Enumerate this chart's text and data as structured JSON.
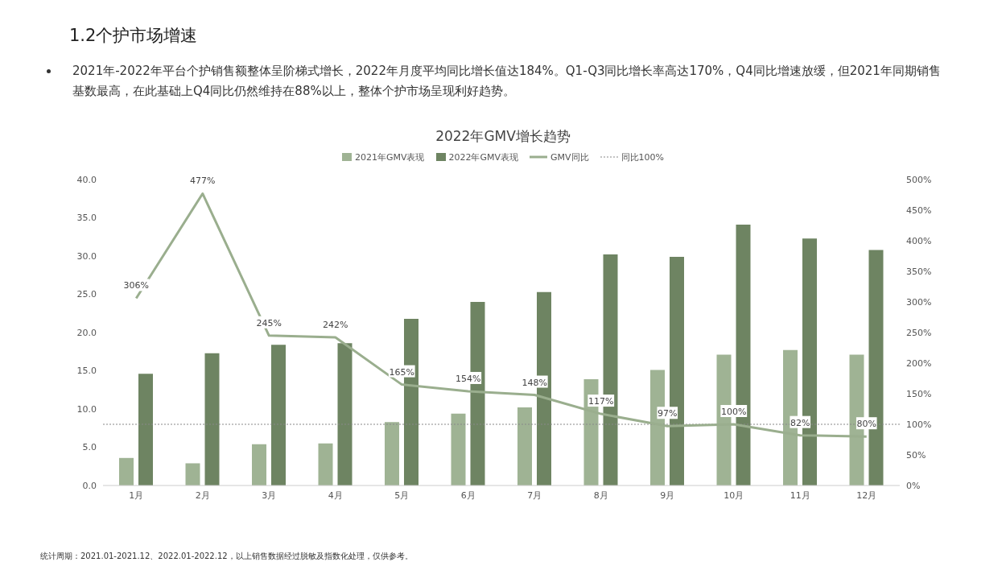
{
  "chart_data": {
    "type": "bar",
    "title": "2022年GMV增长趋势",
    "annotations": [
      "1.2个护市场增速",
      "2021年-2022年平台个护销售额整体呈阶梯式增长，2022年月度平均同比增长值达184%。Q1-Q3同比增长率高达170%，Q4同比增速放缓，但2021年同期销售基数最高，在此基础上Q4同比仍然维持在88%以上，整体个护市场呈现利好趋势。",
      "统计周期：2021.01-2021.12、2022.01-2022.12，以上销售数据经过脱敏及指数化处理，仅供参考。"
    ],
    "categories": [
      "1月",
      "2月",
      "3月",
      "4月",
      "5月",
      "6月",
      "7月",
      "8月",
      "9月",
      "10月",
      "11月",
      "12月"
    ],
    "series": [
      {
        "name": "2021年GMV表现",
        "color": "#9fb394",
        "values": [
          3.6,
          2.9,
          5.4,
          5.5,
          8.3,
          9.4,
          10.2,
          13.9,
          15.1,
          17.1,
          17.7,
          17.1
        ]
      },
      {
        "name": "2022年GMV表现",
        "color": "#6e8462",
        "values": [
          14.6,
          17.3,
          18.4,
          18.6,
          21.8,
          24.0,
          25.3,
          30.2,
          29.9,
          34.1,
          32.3,
          30.8
        ]
      },
      {
        "name": "GMV同比",
        "type": "line",
        "axis": "y2",
        "color": "#9aae8e",
        "values": [
          306,
          477,
          245,
          242,
          165,
          154,
          148,
          117,
          97,
          100,
          82,
          80
        ],
        "value_labels": [
          "306%",
          "477%",
          "245%",
          "242%",
          "165%",
          "154%",
          "148%",
          "117%",
          "97%",
          "100%",
          "82%",
          "80%"
        ]
      }
    ],
    "ylim": [
      0,
      40
    ],
    "yticks": [
      {
        "value": 0,
        "label": "0.0"
      },
      {
        "value": 5,
        "label": "5.0"
      },
      {
        "value": 10,
        "label": "10.0"
      },
      {
        "value": 15,
        "label": "15.0"
      },
      {
        "value": 20,
        "label": "20.0"
      },
      {
        "value": 25,
        "label": "25.0"
      },
      {
        "value": 30,
        "label": "30.0"
      },
      {
        "value": 35,
        "label": "35.0"
      },
      {
        "value": 40,
        "label": "40.0"
      }
    ],
    "y2lim": [
      0,
      500
    ],
    "y2ticks": [
      {
        "value": 0,
        "label": "0%"
      },
      {
        "value": 50,
        "label": "50%"
      },
      {
        "value": 100,
        "label": "100%"
      },
      {
        "value": 150,
        "label": "150%"
      },
      {
        "value": 200,
        "label": "200%"
      },
      {
        "value": 250,
        "label": "250%"
      },
      {
        "value": 300,
        "label": "300%"
      },
      {
        "value": 350,
        "label": "350%"
      },
      {
        "value": 400,
        "label": "400%"
      },
      {
        "value": 450,
        "label": "450%"
      },
      {
        "value": 500,
        "label": "500%"
      }
    ],
    "ref_lines": [
      {
        "axis": "y2",
        "value": 100,
        "label": "同比100%",
        "color": "#888888",
        "line_style": "dotted"
      }
    ],
    "legend": "top",
    "grid": false,
    "marker": "none"
  }
}
